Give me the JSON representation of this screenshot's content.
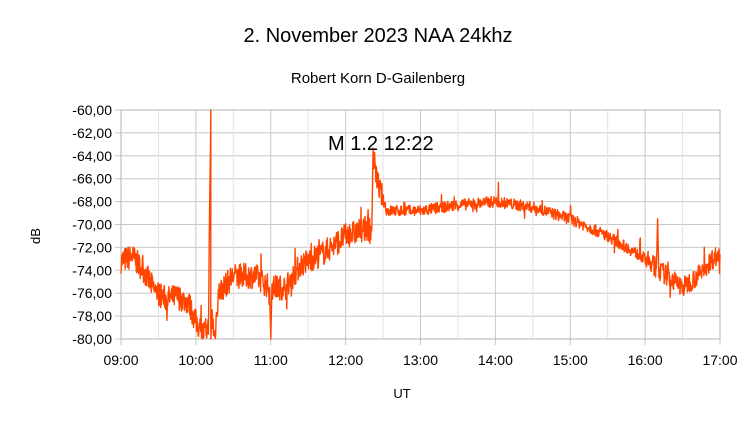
{
  "chart_data": {
    "type": "line",
    "title": "2. November 2023   NAA 24khz",
    "subtitle": "Robert Korn  D-Gailenberg",
    "xlabel": "UT",
    "ylabel": "dB",
    "xlim": [
      "09:00",
      "17:00"
    ],
    "ylim": [
      -80,
      -60
    ],
    "x_ticks": [
      "09:00",
      "10:00",
      "11:00",
      "12:00",
      "13:00",
      "14:00",
      "15:00",
      "16:00",
      "17:00"
    ],
    "y_ticks": [
      "-60,00",
      "-62,00",
      "-64,00",
      "-66,00",
      "-68,00",
      "-70,00",
      "-72,00",
      "-74,00",
      "-76,00",
      "-78,00",
      "-80,00"
    ],
    "grid": true,
    "line_color": "#ff4500",
    "annotation": "M 1.2  12:22",
    "series": [
      {
        "x": [
          "09:00",
          "09:09",
          "09:18",
          "09:27",
          "09:36",
          "09:45",
          "09:54",
          "10:00",
          "10:06",
          "10:10",
          "10:12",
          "10:12",
          "10:13",
          "10:15",
          "10:18",
          "10:30",
          "10:48",
          "10:59",
          "11:00",
          "11:01",
          "11:12",
          "11:24",
          "11:42",
          "12:00",
          "12:18",
          "12:21",
          "12:22",
          "12:26",
          "12:33",
          "13:00",
          "13:30",
          "14:00",
          "14:30",
          "15:00",
          "15:30",
          "16:00",
          "16:09",
          "16:10",
          "16:11",
          "16:18",
          "16:30",
          "16:42",
          "16:54",
          "17:00"
        ],
        "y": [
          -73.2,
          -72.8,
          -74.0,
          -75.8,
          -76.5,
          -76.3,
          -76.8,
          -78.5,
          -79.5,
          -79.0,
          -60.0,
          -80.0,
          -78.0,
          -80.0,
          -76.0,
          -74.5,
          -74.5,
          -75.5,
          -80.0,
          -75.5,
          -75.5,
          -73.5,
          -72.5,
          -71.0,
          -70.3,
          -70.5,
          -64.0,
          -66.5,
          -68.8,
          -68.8,
          -68.3,
          -68.0,
          -68.5,
          -69.5,
          -71.0,
          -73.0,
          -73.8,
          -69.5,
          -74.0,
          -74.5,
          -75.5,
          -74.5,
          -73.0,
          -72.6
        ]
      }
    ]
  }
}
